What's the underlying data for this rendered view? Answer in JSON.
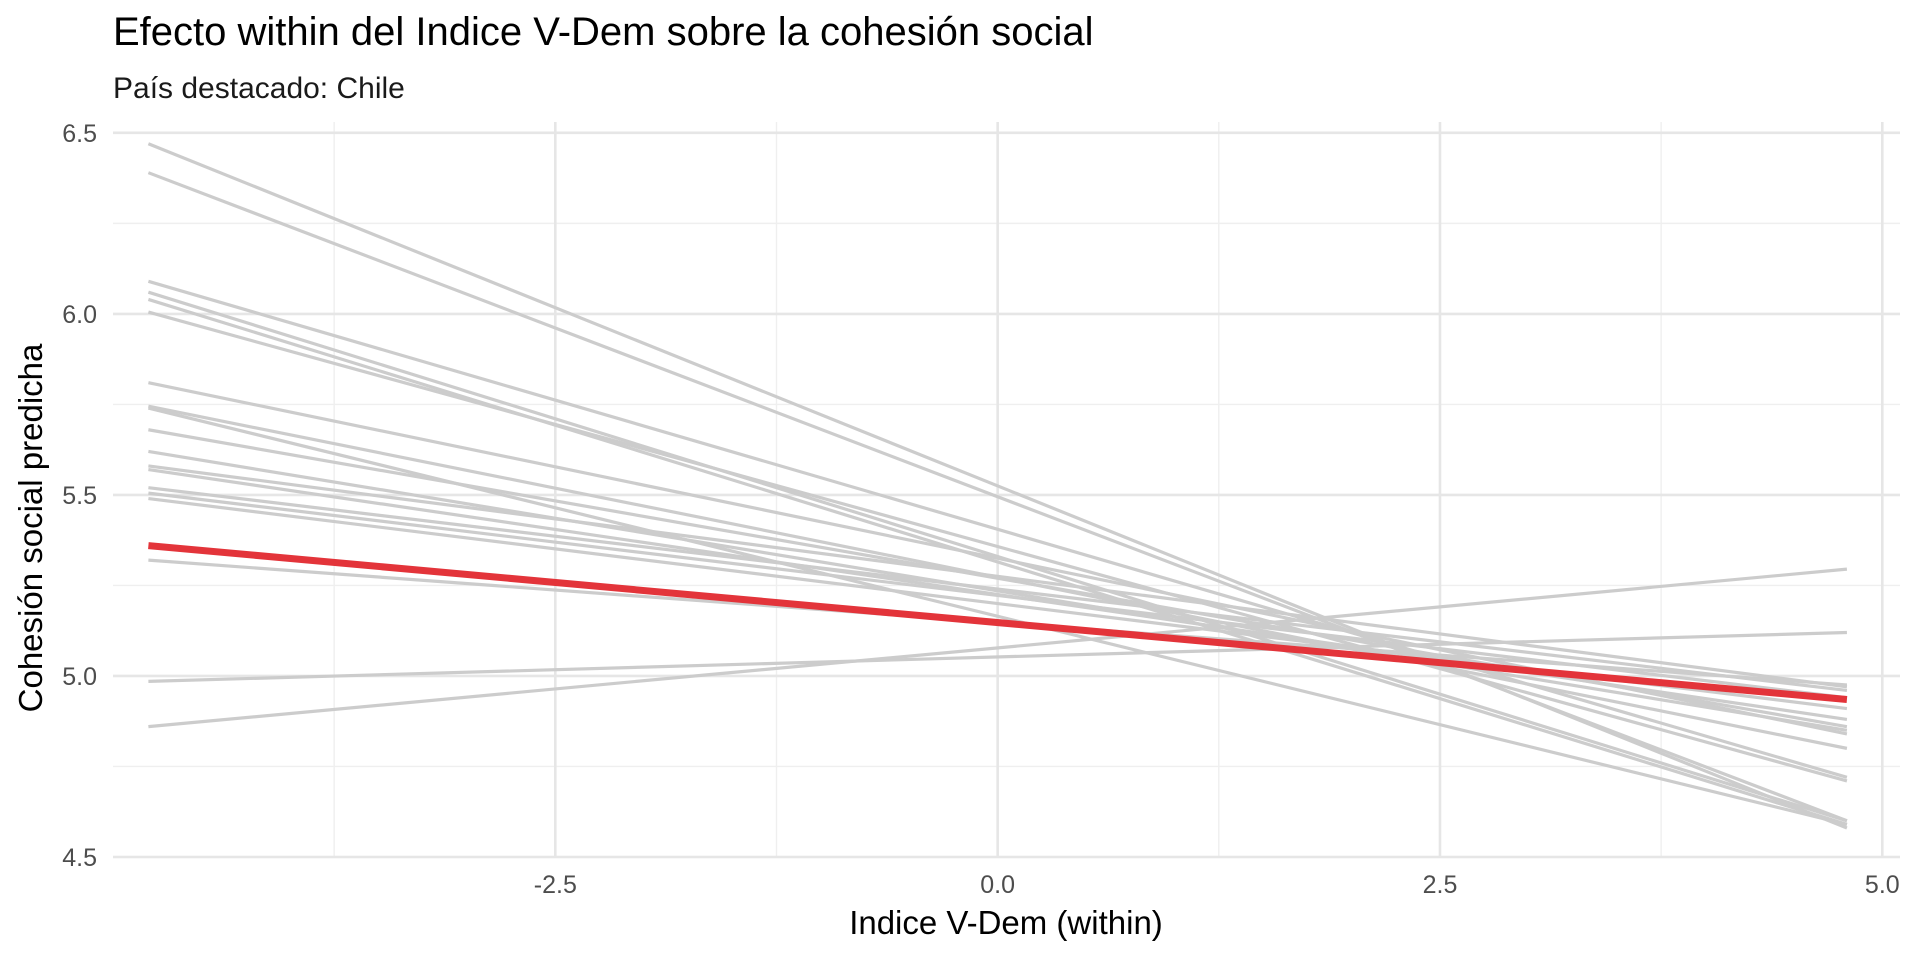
{
  "chart_data": {
    "type": "line",
    "title": "Efecto within del Indice V-Dem sobre la cohesión social",
    "subtitle": "País destacado: Chile",
    "xlabel": "Indice V-Dem (within)",
    "ylabel": "Cohesión social predicha",
    "xlim": [
      -5.0,
      5.1
    ],
    "ylim": [
      4.5,
      6.53
    ],
    "x_ticks": [
      -2.5,
      0.0,
      2.5,
      5.0
    ],
    "x_tick_labels": [
      "-2.5",
      "0.0",
      "2.5",
      "5.0"
    ],
    "y_ticks": [
      4.5,
      5.0,
      5.5,
      6.0,
      6.5
    ],
    "y_tick_labels": [
      "4.5",
      "5.0",
      "5.5",
      "6.0",
      "6.5"
    ],
    "grid": true,
    "legend": "none",
    "x_range": [
      -4.8,
      4.8
    ],
    "highlight": {
      "name": "Chile",
      "color": "#e3343a",
      "values": [
        5.36,
        4.935
      ]
    },
    "other_color": "#cccccc",
    "series": [
      {
        "values": [
          6.47,
          4.58
        ]
      },
      {
        "values": [
          6.39,
          4.6
        ]
      },
      {
        "values": [
          6.09,
          4.72
        ]
      },
      {
        "values": [
          6.06,
          4.6
        ]
      },
      {
        "values": [
          6.04,
          4.59
        ]
      },
      {
        "values": [
          6.005,
          4.71
        ]
      },
      {
        "values": [
          5.81,
          4.84
        ]
      },
      {
        "values": [
          5.745,
          4.8
        ]
      },
      {
        "values": [
          5.74,
          4.59
        ]
      },
      {
        "values": [
          5.68,
          4.86
        ]
      },
      {
        "values": [
          5.62,
          4.85
        ]
      },
      {
        "values": [
          5.58,
          4.97
        ]
      },
      {
        "values": [
          5.57,
          4.88
        ]
      },
      {
        "values": [
          5.52,
          4.96
        ]
      },
      {
        "values": [
          5.505,
          4.94
        ]
      },
      {
        "values": [
          5.49,
          4.91
        ]
      },
      {
        "values": [
          5.32,
          4.975
        ]
      },
      {
        "values": [
          4.985,
          5.12
        ]
      },
      {
        "values": [
          4.86,
          5.295
        ]
      }
    ]
  }
}
